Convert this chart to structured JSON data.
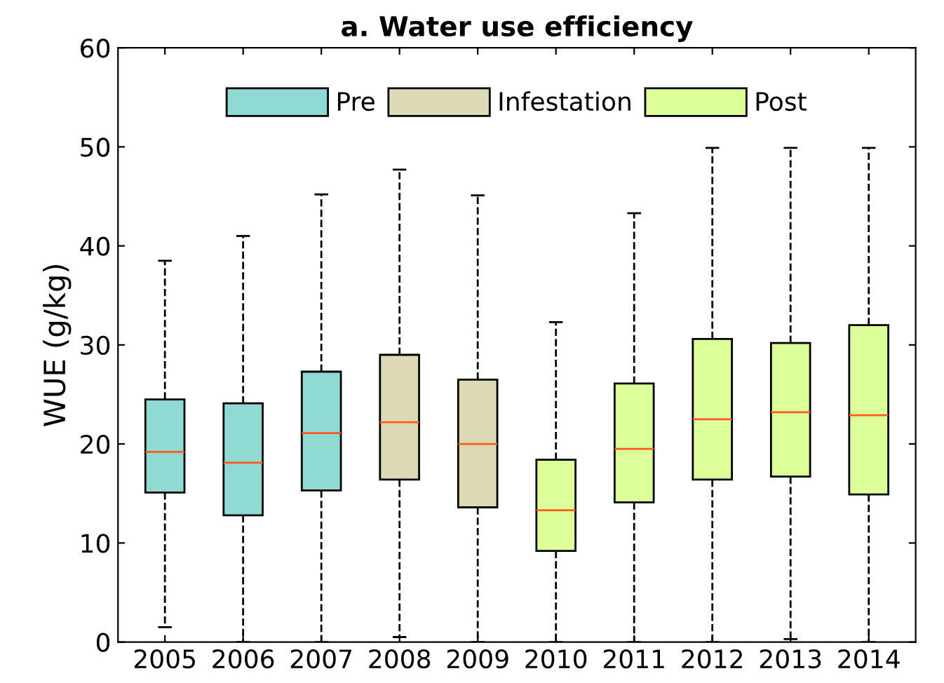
{
  "chart_data": {
    "type": "box",
    "title": "a. Water use efficiency",
    "ylabel": "WUE (g/kg)",
    "categories": [
      "2005",
      "2006",
      "2007",
      "2008",
      "2009",
      "2010",
      "2011",
      "2012",
      "2013",
      "2014"
    ],
    "ylim": [
      0,
      60
    ],
    "yticks": [
      0,
      10,
      20,
      30,
      40,
      50,
      60
    ],
    "grid": false,
    "legend": "top",
    "series": [
      {
        "name": "Pre",
        "color": "#8fdbd3",
        "boxes": [
          {
            "low": 1.5,
            "q1": 15.1,
            "median": 19.2,
            "q3": 24.5,
            "high": 38.5
          },
          {
            "low": 0,
            "q1": 12.8,
            "median": 18.1,
            "q3": 24.1,
            "high": 41
          },
          {
            "low": 0,
            "q1": 15.3,
            "median": 21.1,
            "q3": 27.3,
            "high": 45.2
          },
          null,
          null,
          null,
          null,
          null,
          null,
          null
        ]
      },
      {
        "name": "Infestation",
        "color": "#ded9b5",
        "boxes": [
          null,
          null,
          null,
          {
            "low": 0.5,
            "q1": 16.4,
            "median": 22.2,
            "q3": 29,
            "high": 47.7
          },
          {
            "low": 0,
            "q1": 13.6,
            "median": 20,
            "q3": 26.5,
            "high": 45.1
          },
          null,
          null,
          null,
          null,
          null
        ]
      },
      {
        "name": "Post",
        "color": "#ddff99",
        "boxes": [
          null,
          null,
          null,
          null,
          null,
          {
            "low": 0,
            "q1": 9.2,
            "median": 13.3,
            "q3": 18.4,
            "high": 32.3
          },
          {
            "low": 0,
            "q1": 14.1,
            "median": 19.5,
            "q3": 26.1,
            "high": 43.3
          },
          {
            "low": 0,
            "q1": 16.4,
            "median": 22.5,
            "q3": 30.6,
            "high": 49.9
          },
          {
            "low": 0.3,
            "q1": 16.7,
            "median": 23.2,
            "q3": 30.2,
            "high": 49.9
          },
          {
            "low": 0,
            "q1": 14.9,
            "median": 22.9,
            "q3": 32,
            "high": 49.9
          }
        ]
      }
    ]
  }
}
